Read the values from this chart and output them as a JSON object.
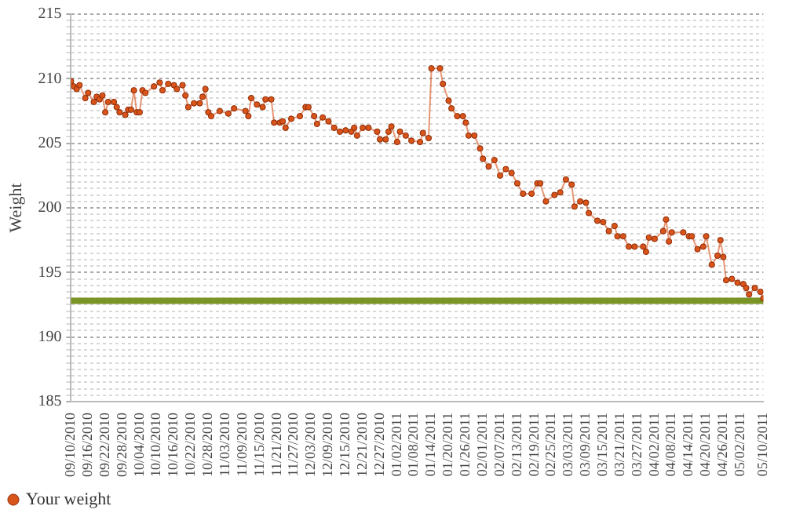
{
  "chart_data": {
    "type": "line",
    "ylabel": "Weight",
    "marker": "circle",
    "grid": "y",
    "legend": "bottom left",
    "line_style": "solid",
    "xlim": [
      "2010-09-10",
      "2011-05-10"
    ],
    "xticks": [
      {
        "value": "2010-09-10",
        "label": "09/10/2010"
      },
      {
        "value": "2010-09-16",
        "label": "09/16/2010"
      },
      {
        "value": "2010-09-22",
        "label": "09/22/2010"
      },
      {
        "value": "2010-09-28",
        "label": "09/28/2010"
      },
      {
        "value": "2010-10-04",
        "label": "10/04/2010"
      },
      {
        "value": "2010-10-10",
        "label": "10/10/2010"
      },
      {
        "value": "2010-10-16",
        "label": "10/16/2010"
      },
      {
        "value": "2010-10-22",
        "label": "10/22/2010"
      },
      {
        "value": "2010-10-28",
        "label": "10/28/2010"
      },
      {
        "value": "2010-11-03",
        "label": "11/03/2010"
      },
      {
        "value": "2010-11-09",
        "label": "11/09/2010"
      },
      {
        "value": "2010-11-15",
        "label": "11/15/2010"
      },
      {
        "value": "2010-11-21",
        "label": "11/21/2010"
      },
      {
        "value": "2010-11-27",
        "label": "11/27/2010"
      },
      {
        "value": "2010-12-03",
        "label": "12/03/2010"
      },
      {
        "value": "2010-12-09",
        "label": "12/09/2010"
      },
      {
        "value": "2010-12-15",
        "label": "12/15/2010"
      },
      {
        "value": "2010-12-21",
        "label": "12/21/2010"
      },
      {
        "value": "2010-12-27",
        "label": "12/27/2010"
      },
      {
        "value": "2011-01-02",
        "label": "01/02/2011"
      },
      {
        "value": "2011-01-08",
        "label": "01/08/2011"
      },
      {
        "value": "2011-01-14",
        "label": "01/14/2011"
      },
      {
        "value": "2011-01-20",
        "label": "01/20/2011"
      },
      {
        "value": "2011-01-26",
        "label": "01/26/2011"
      },
      {
        "value": "2011-02-01",
        "label": "02/01/2011"
      },
      {
        "value": "2011-02-07",
        "label": "02/07/2011"
      },
      {
        "value": "2011-02-13",
        "label": "02/13/2011"
      },
      {
        "value": "2011-02-19",
        "label": "02/19/2011"
      },
      {
        "value": "2011-02-25",
        "label": "02/25/2011"
      },
      {
        "value": "2011-03-03",
        "label": "03/03/2011"
      },
      {
        "value": "2011-03-09",
        "label": "03/09/2011"
      },
      {
        "value": "2011-03-15",
        "label": "03/15/2011"
      },
      {
        "value": "2011-03-21",
        "label": "03/21/2011"
      },
      {
        "value": "2011-03-27",
        "label": "03/27/2011"
      },
      {
        "value": "2011-04-02",
        "label": "04/02/2011"
      },
      {
        "value": "2011-04-08",
        "label": "04/08/2011"
      },
      {
        "value": "2011-04-14",
        "label": "04/14/2011"
      },
      {
        "value": "2011-04-20",
        "label": "04/20/2011"
      },
      {
        "value": "2011-04-26",
        "label": "04/26/2011"
      },
      {
        "value": "2011-05-02",
        "label": "05/02/2011"
      },
      {
        "value": "2011-05-10",
        "label": "05/10/2011"
      }
    ],
    "ylim": [
      185,
      215
    ],
    "yticks": [
      185,
      {
        "value": 185.5,
        "label": null
      },
      {
        "value": 186,
        "label": null
      },
      {
        "value": 186.5,
        "label": null
      },
      {
        "value": 187,
        "label": null
      },
      {
        "value": 187.5,
        "label": null
      },
      {
        "value": 188,
        "label": null
      },
      {
        "value": 188.5,
        "label": null
      },
      {
        "value": 189,
        "label": null
      },
      {
        "value": 189.5,
        "label": null
      },
      190,
      {
        "value": 190.5,
        "label": null
      },
      {
        "value": 191,
        "label": null
      },
      {
        "value": 191.5,
        "label": null
      },
      {
        "value": 192,
        "label": null
      },
      {
        "value": 192.5,
        "label": null
      },
      {
        "value": 193,
        "label": null
      },
      {
        "value": 193.5,
        "label": null
      },
      {
        "value": 194,
        "label": null
      },
      {
        "value": 194.5,
        "label": null
      },
      195,
      {
        "value": 195.5,
        "label": null
      },
      {
        "value": 196,
        "label": null
      },
      {
        "value": 196.5,
        "label": null
      },
      {
        "value": 197,
        "label": null
      },
      {
        "value": 197.5,
        "label": null
      },
      {
        "value": 198,
        "label": null
      },
      {
        "value": 198.5,
        "label": null
      },
      {
        "value": 199,
        "label": null
      },
      {
        "value": 199.5,
        "label": null
      },
      200,
      {
        "value": 200.5,
        "label": null
      },
      {
        "value": 201,
        "label": null
      },
      {
        "value": 201.5,
        "label": null
      },
      {
        "value": 202,
        "label": null
      },
      {
        "value": 202.5,
        "label": null
      },
      {
        "value": 203,
        "label": null
      },
      {
        "value": 203.5,
        "label": null
      },
      {
        "value": 204,
        "label": null
      },
      {
        "value": 204.5,
        "label": null
      },
      205,
      {
        "value": 205.5,
        "label": null
      },
      {
        "value": 206,
        "label": null
      },
      {
        "value": 206.5,
        "label": null
      },
      {
        "value": 207,
        "label": null
      },
      {
        "value": 207.5,
        "label": null
      },
      {
        "value": 208,
        "label": null
      },
      {
        "value": 208.5,
        "label": null
      },
      {
        "value": 209,
        "label": null
      },
      {
        "value": 209.5,
        "label": null
      },
      210,
      {
        "value": 210.5,
        "label": null
      },
      {
        "value": 211,
        "label": null
      },
      {
        "value": 211.5,
        "label": null
      },
      {
        "value": 212,
        "label": null
      },
      {
        "value": 212.5,
        "label": null
      },
      {
        "value": 213,
        "label": null
      },
      {
        "value": 213.5,
        "label": null
      },
      {
        "value": 214,
        "label": null
      },
      {
        "value": 214.5,
        "label": null
      },
      215
    ],
    "ref_lines": [
      {
        "axis": "y",
        "value": 192.8,
        "color": "#7a9426"
      }
    ],
    "x": [
      "2010-09-10",
      "2010-09-11",
      "2010-09-12",
      "2010-09-13",
      "2010-09-15",
      "2010-09-16",
      "2010-09-18",
      "2010-09-19",
      "2010-09-20",
      "2010-09-21",
      "2010-09-22",
      "2010-09-23",
      "2010-09-25",
      "2010-09-26",
      "2010-09-27",
      "2010-09-29",
      "2010-09-30",
      "2010-10-01",
      "2010-10-02",
      "2010-10-03",
      "2010-10-04",
      "2010-10-05",
      "2010-10-06",
      "2010-10-09",
      "2010-10-11",
      "2010-10-12",
      "2010-10-14",
      "2010-10-16",
      "2010-10-17",
      "2010-10-19",
      "2010-10-20",
      "2010-10-21",
      "2010-10-23",
      "2010-10-25",
      "2010-10-26",
      "2010-10-27",
      "2010-10-28",
      "2010-10-29",
      "2010-11-01",
      "2010-11-04",
      "2010-11-06",
      "2010-11-10",
      "2010-11-11",
      "2010-11-12",
      "2010-11-14",
      "2010-11-16",
      "2010-11-17",
      "2010-11-19",
      "2010-11-20",
      "2010-11-22",
      "2010-11-23",
      "2010-11-24",
      "2010-11-26",
      "2010-11-29",
      "2010-12-01",
      "2010-12-02",
      "2010-12-04",
      "2010-12-05",
      "2010-12-07",
      "2010-12-09",
      "2010-12-11",
      "2010-12-13",
      "2010-12-15",
      "2010-12-17",
      "2010-12-18",
      "2010-12-19",
      "2010-12-21",
      "2010-12-23",
      "2010-12-26",
      "2010-12-27",
      "2010-12-29",
      "2010-12-30",
      "2010-12-31",
      "2011-01-02",
      "2011-01-03",
      "2011-01-05",
      "2011-01-07",
      "2011-01-10",
      "2011-01-11",
      "2011-01-13",
      "2011-01-14",
      "2011-01-17",
      "2011-01-18",
      "2011-01-20",
      "2011-01-21",
      "2011-01-23",
      "2011-01-25",
      "2011-01-26",
      "2011-01-27",
      "2011-01-29",
      "2011-01-31",
      "2011-02-01",
      "2011-02-03",
      "2011-02-05",
      "2011-02-07",
      "2011-02-09",
      "2011-02-11",
      "2011-02-13",
      "2011-02-15",
      "2011-02-18",
      "2011-02-20",
      "2011-02-21",
      "2011-02-23",
      "2011-02-26",
      "2011-02-28",
      "2011-03-02",
      "2011-03-04",
      "2011-03-05",
      "2011-03-07",
      "2011-03-09",
      "2011-03-10",
      "2011-03-13",
      "2011-03-15",
      "2011-03-17",
      "2011-03-19",
      "2011-03-20",
      "2011-03-22",
      "2011-03-24",
      "2011-03-26",
      "2011-03-29",
      "2011-03-30",
      "2011-03-31",
      "2011-04-02",
      "2011-04-05",
      "2011-04-06",
      "2011-04-07",
      "2011-04-08",
      "2011-04-12",
      "2011-04-14",
      "2011-04-15",
      "2011-04-17",
      "2011-04-19",
      "2011-04-20",
      "2011-04-22",
      "2011-04-24",
      "2011-04-25",
      "2011-04-26",
      "2011-04-27",
      "2011-04-29",
      "2011-05-01",
      "2011-05-03",
      "2011-05-04",
      "2011-05-05",
      "2011-05-07",
      "2011-05-09",
      "2011-05-10"
    ],
    "series": [
      {
        "name": "Your weight",
        "color": "#d9541a",
        "values": [
          209.8,
          209.4,
          209.2,
          209.5,
          208.5,
          208.9,
          208.2,
          208.6,
          208.4,
          208.7,
          207.4,
          208.2,
          208.2,
          207.8,
          207.4,
          207.2,
          207.6,
          207.6,
          209.1,
          207.4,
          207.4,
          209.1,
          208.9,
          209.4,
          209.7,
          209.1,
          209.6,
          209.5,
          209.2,
          209.5,
          208.7,
          207.8,
          208.1,
          208.1,
          208.6,
          209.2,
          207.4,
          207.1,
          207.5,
          207.3,
          207.7,
          207.5,
          207.1,
          208.5,
          208.0,
          207.8,
          208.4,
          208.4,
          206.6,
          206.6,
          206.7,
          206.2,
          206.9,
          207.1,
          207.8,
          207.8,
          207.1,
          206.5,
          207.0,
          206.7,
          206.2,
          205.9,
          206.0,
          205.9,
          206.2,
          205.6,
          206.2,
          206.2,
          205.9,
          205.3,
          205.3,
          205.9,
          206.3,
          205.1,
          205.9,
          205.6,
          205.2,
          205.1,
          205.8,
          205.4,
          210.8,
          210.8,
          209.6,
          208.3,
          207.7,
          207.1,
          207.1,
          206.6,
          205.6,
          205.6,
          204.6,
          203.8,
          203.2,
          203.7,
          202.5,
          203.0,
          202.7,
          201.9,
          201.1,
          201.1,
          201.9,
          201.9,
          200.5,
          201.0,
          201.2,
          202.2,
          201.8,
          200.1,
          200.5,
          200.4,
          199.6,
          199.0,
          198.9,
          198.2,
          198.6,
          197.8,
          197.8,
          197.0,
          197.0,
          197.0,
          196.6,
          197.7,
          197.6,
          198.2,
          199.1,
          197.4,
          198.1,
          198.1,
          197.8,
          197.8,
          196.8,
          197.0,
          197.8,
          195.6,
          196.3,
          197.5,
          196.2,
          194.4,
          194.5,
          194.2,
          194.1,
          193.8,
          193.3,
          193.8,
          193.5,
          193.0
        ]
      }
    ]
  }
}
